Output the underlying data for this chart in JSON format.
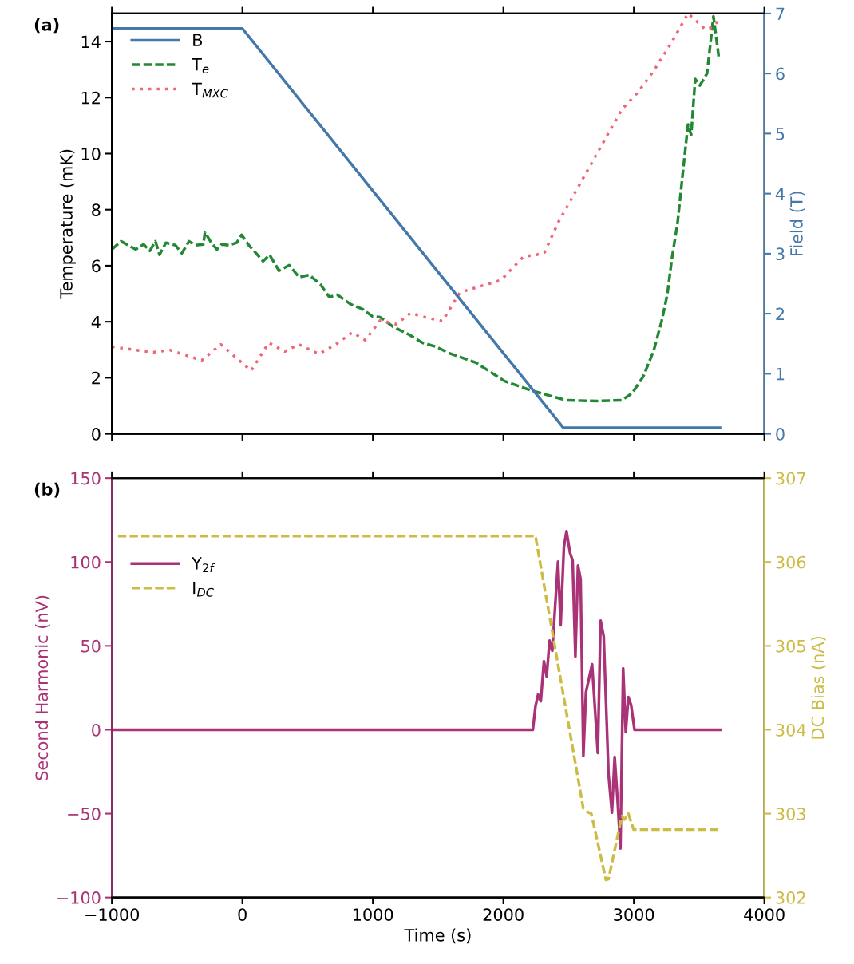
{
  "chart_data": [
    {
      "type": "line",
      "annotations": [
        "(a)"
      ],
      "ylabel": "Temperature (mK)",
      "y2label": "Field (T)",
      "xlim": [
        -1000,
        4000
      ],
      "xticks": [
        -1000,
        0,
        1000,
        2000,
        3000,
        4000
      ],
      "ylim": [
        0,
        15
      ],
      "yticks": [
        0,
        2,
        4,
        6,
        8,
        10,
        12,
        14
      ],
      "y2lim": [
        0,
        7
      ],
      "y2ticks": [
        0,
        1,
        2,
        3,
        4,
        5,
        6,
        7
      ],
      "tick_labels": "y",
      "legend": "top left",
      "grid": false,
      "series": [
        {
          "name": "B",
          "color": "#4477aa",
          "axis": "y2",
          "line_style": "solid",
          "x": [
            -1000,
            0,
            2460,
            3660
          ],
          "values": [
            6.75,
            6.75,
            0.1,
            0.1
          ]
        },
        {
          "name": "T$_{e}$",
          "color": "#228833",
          "axis": "y",
          "line_style": "dashed",
          "x": [
            -1000,
            -930,
            -818,
            -757,
            -709,
            -666,
            -635,
            -586,
            -513,
            -464,
            -409,
            -360,
            -299,
            -287,
            -238,
            -195,
            -159,
            -104,
            -43,
            -6,
            49,
            79,
            159,
            208,
            281,
            360,
            434,
            513,
            599,
            666,
            727,
            831,
            922,
            996,
            1057,
            1155,
            1277,
            1380,
            1484,
            1582,
            1790,
            2010,
            2217,
            2480,
            2724,
            2908,
            2987,
            3073,
            3152,
            3213,
            3256,
            3293,
            3335,
            3378,
            3415,
            3439,
            3470,
            3506,
            3561,
            3610,
            3653
          ],
          "values": [
            6.58,
            6.87,
            6.58,
            6.76,
            6.53,
            6.87,
            6.39,
            6.82,
            6.73,
            6.44,
            6.87,
            6.73,
            6.76,
            7.19,
            6.82,
            6.58,
            6.76,
            6.73,
            6.82,
            7.1,
            6.73,
            6.58,
            6.16,
            6.39,
            5.82,
            6.02,
            5.59,
            5.67,
            5.33,
            4.88,
            4.96,
            4.62,
            4.45,
            4.19,
            4.16,
            3.82,
            3.54,
            3.25,
            3.11,
            2.88,
            2.54,
            1.88,
            1.54,
            1.2,
            1.17,
            1.2,
            1.45,
            2.05,
            2.97,
            4.02,
            4.96,
            6.3,
            7.53,
            9.44,
            11.04,
            10.66,
            12.66,
            12.43,
            12.86,
            14.9,
            13.37
          ]
        },
        {
          "name": "T$_{MXC}$",
          "color": "#ee6677",
          "axis": "y",
          "line_style": "dotted",
          "x": [
            -1000,
            -818,
            -684,
            -556,
            -312,
            -165,
            67,
            202,
            324,
            434,
            586,
            709,
            843,
            941,
            1057,
            1179,
            1289,
            1399,
            1533,
            1668,
            1973,
            2010,
            2156,
            2254,
            2315,
            2419,
            2908,
            3030,
            3152,
            3293,
            3415,
            3549,
            3598,
            3659
          ],
          "values": [
            3.11,
            2.99,
            2.91,
            2.99,
            2.62,
            3.19,
            2.25,
            3.25,
            2.94,
            3.19,
            2.85,
            3.17,
            3.62,
            3.34,
            4.05,
            3.91,
            4.31,
            4.16,
            4.02,
            5.05,
            5.47,
            5.62,
            6.33,
            6.39,
            6.47,
            7.53,
            11.58,
            12.18,
            12.95,
            14.0,
            15.0,
            14.43,
            14.5,
            14.8
          ]
        }
      ]
    },
    {
      "type": "line",
      "annotations": [
        "(b)"
      ],
      "xlabel": "Time (s)",
      "ylabel": "Second Harmonic (nV)",
      "y2label": "DC Bias (nA)",
      "xlim": [
        -1000,
        4000
      ],
      "xticks": [
        -1000,
        0,
        1000,
        2000,
        3000,
        4000
      ],
      "ylim": [
        -100,
        150
      ],
      "yticks": [
        -100,
        -50,
        0,
        50,
        100,
        150
      ],
      "y2lim": [
        302,
        307
      ],
      "y2ticks": [
        302,
        303,
        304,
        305,
        306,
        307
      ],
      "legend": "top left",
      "grid": false,
      "series": [
        {
          "name": "Y$_{2f}$",
          "color": "#aa3377",
          "axis": "y",
          "line_style": "solid",
          "x": [
            -1000,
            2226,
            2246,
            2266,
            2287,
            2311,
            2332,
            2354,
            2375,
            2419,
            2439,
            2464,
            2484,
            2511,
            2531,
            2552,
            2572,
            2592,
            2613,
            2633,
            2680,
            2724,
            2745,
            2769,
            2806,
            2832,
            2853,
            2877,
            2897,
            2918,
            2938,
            2958,
            2979,
            3005,
            3661
          ],
          "values": [
            0,
            0,
            13.8,
            20.9,
            17,
            40.9,
            31.8,
            53.2,
            47,
            100.3,
            62.3,
            108.8,
            118.3,
            105.5,
            100.8,
            43.7,
            97.9,
            89.8,
            -15.7,
            22.3,
            39,
            -13.8,
            65.1,
            55.6,
            -26.6,
            -49.4,
            -16.2,
            -44.2,
            -70.8,
            36.6,
            -1.4,
            19.5,
            14.7,
            0,
            0
          ]
        },
        {
          "name": "I$_{DC}$",
          "color": "#ccbb44",
          "axis": "y2",
          "line_style": "dashed",
          "x": [
            -953,
            2246,
            2613,
            2643,
            2674,
            2786,
            2806,
            2908,
            2928,
            2958,
            2998,
            3651
          ],
          "values": [
            306.31,
            306.31,
            303.06,
            303.02,
            303.0,
            302.21,
            302.22,
            302.97,
            302.93,
            303.0,
            302.81,
            302.81
          ]
        }
      ]
    }
  ]
}
